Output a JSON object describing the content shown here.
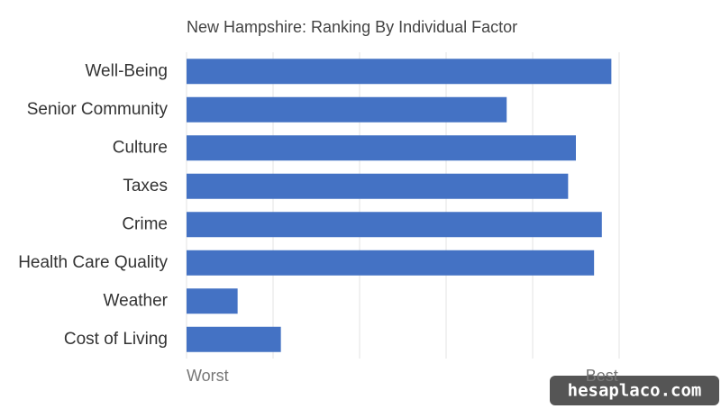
{
  "chart_data": {
    "type": "bar",
    "orientation": "horizontal",
    "title": "New Hampshire: Ranking By Individual Factor",
    "categories": [
      "Well-Being",
      "Senior Community",
      "Culture",
      "Taxes",
      "Crime",
      "Health Care Quality",
      "Weather",
      "Cost of Living"
    ],
    "values": [
      49.1,
      37,
      45,
      44.1,
      48,
      47.1,
      5.9,
      10.9
    ],
    "color": "#4472c4",
    "xlim": [
      0,
      50
    ],
    "xticks": [
      {
        "value": 0,
        "label": "Worst"
      },
      {
        "value": 48,
        "label": "Best"
      }
    ],
    "xgrid": [
      0,
      10,
      20,
      30,
      40,
      50
    ]
  },
  "watermark": "hesaplaco.com"
}
